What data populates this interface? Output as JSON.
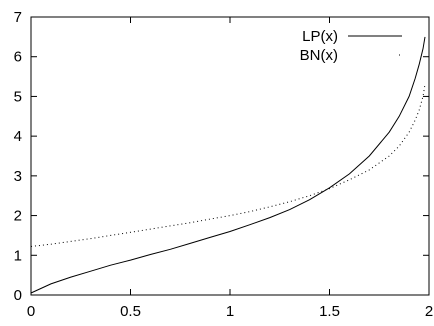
{
  "chart_data": {
    "type": "line",
    "title": "",
    "xlabel": "",
    "ylabel": "",
    "xlim": [
      0,
      2
    ],
    "ylim": [
      0,
      7
    ],
    "x_ticks": [
      0,
      0.5,
      1,
      1.5,
      2
    ],
    "x_tick_labels": [
      "0",
      "0.5",
      "1",
      "1.5",
      "2"
    ],
    "y_ticks": [
      0,
      1,
      2,
      3,
      4,
      5,
      6,
      7
    ],
    "y_tick_labels": [
      "0",
      "1",
      "2",
      "3",
      "4",
      "5",
      "6",
      "7"
    ],
    "grid": false,
    "legend_position": "top-right",
    "series": [
      {
        "name": "LP(x)",
        "style": "solid",
        "color": "#000000",
        "x": [
          0,
          0.1,
          0.2,
          0.3,
          0.4,
          0.5,
          0.6,
          0.7,
          0.8,
          0.9,
          1.0,
          1.1,
          1.2,
          1.3,
          1.4,
          1.5,
          1.6,
          1.7,
          1.8,
          1.85,
          1.9,
          1.93,
          1.95,
          1.97,
          1.98
        ],
        "y": [
          0.05,
          0.28,
          0.45,
          0.6,
          0.75,
          0.88,
          1.02,
          1.15,
          1.3,
          1.45,
          1.6,
          1.77,
          1.95,
          2.15,
          2.4,
          2.7,
          3.05,
          3.5,
          4.1,
          4.5,
          5.0,
          5.45,
          5.8,
          6.2,
          6.5
        ]
      },
      {
        "name": "BN(x)",
        "style": "dotted",
        "color": "#000000",
        "x": [
          0,
          0.1,
          0.2,
          0.3,
          0.4,
          0.5,
          0.6,
          0.7,
          0.8,
          0.9,
          1.0,
          1.1,
          1.2,
          1.3,
          1.4,
          1.5,
          1.6,
          1.7,
          1.8,
          1.85,
          1.9,
          1.93,
          1.95,
          1.97,
          1.98
        ],
        "y": [
          1.22,
          1.28,
          1.35,
          1.42,
          1.5,
          1.58,
          1.66,
          1.74,
          1.82,
          1.91,
          2.0,
          2.1,
          2.22,
          2.35,
          2.5,
          2.68,
          2.9,
          3.15,
          3.5,
          3.75,
          4.1,
          4.4,
          4.65,
          5.0,
          5.3
        ]
      }
    ]
  }
}
